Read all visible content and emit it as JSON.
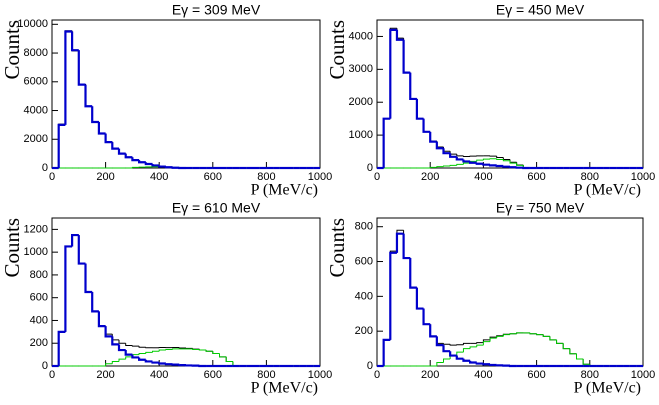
{
  "chart_data": [
    {
      "type": "histogram",
      "title": "Eγ = 309 MeV",
      "x_label": "P (MeV/c)",
      "y_label": "Counts",
      "bins": [
        0,
        25,
        50,
        75,
        100,
        125,
        150,
        175,
        200,
        225,
        250,
        275,
        300,
        325,
        350,
        375,
        400,
        425,
        450,
        475,
        500,
        525,
        550,
        575,
        600,
        625,
        650,
        675,
        700,
        725,
        750,
        775,
        800,
        825,
        850,
        875,
        900,
        925,
        950,
        975,
        1000
      ],
      "xlim": [
        0,
        1000
      ],
      "xticks": [
        0,
        200,
        400,
        600,
        800,
        1000
      ],
      "ylim": [
        0,
        10300
      ],
      "yticks": [
        0,
        2000,
        4000,
        6000,
        8000,
        10000
      ],
      "series": [
        {
          "color": "#000000",
          "line_width": 1,
          "values": [
            0,
            3050,
            9550,
            8150,
            5850,
            4280,
            3220,
            2380,
            1820,
            1340,
            1010,
            740,
            560,
            395,
            285,
            175,
            105,
            55,
            25,
            5,
            0,
            0,
            0,
            0,
            0,
            0,
            0,
            0,
            0,
            0,
            0,
            0,
            0,
            0,
            0,
            0,
            0,
            0,
            0,
            0
          ]
        },
        {
          "color": "#00cc00",
          "line_width": 1,
          "values": [
            0,
            0,
            0,
            0,
            0,
            0,
            0,
            0,
            0,
            0,
            0,
            0,
            40,
            60,
            80,
            90,
            80,
            60,
            40,
            20,
            0,
            0,
            0,
            0,
            0,
            0,
            0,
            0,
            0,
            0,
            0,
            0,
            0,
            0,
            0,
            0,
            0,
            0,
            0,
            0
          ]
        },
        {
          "color": "#0000cc",
          "line_width": 2.2,
          "values": [
            0,
            3000,
            9500,
            8200,
            5800,
            4300,
            3200,
            2400,
            1800,
            1350,
            1000,
            750,
            550,
            400,
            280,
            180,
            100,
            50,
            20,
            0,
            0,
            0,
            0,
            0,
            0,
            0,
            0,
            0,
            0,
            0,
            0,
            0,
            0,
            0,
            0,
            0,
            0,
            0,
            0,
            0
          ]
        }
      ]
    },
    {
      "type": "histogram",
      "title": "Eγ = 450 MeV",
      "x_label": "P (MeV/c)",
      "y_label": "Counts",
      "bins": [
        0,
        25,
        50,
        75,
        100,
        125,
        150,
        175,
        200,
        225,
        250,
        275,
        300,
        325,
        350,
        375,
        400,
        425,
        450,
        475,
        500,
        525,
        550,
        575,
        600,
        625,
        650,
        675,
        700,
        725,
        750,
        775,
        800,
        825,
        850,
        875,
        900,
        925,
        950,
        975,
        1000
      ],
      "xlim": [
        0,
        1000
      ],
      "xticks": [
        0,
        200,
        400,
        600,
        800,
        1000
      ],
      "ylim": [
        0,
        4500
      ],
      "yticks": [
        0,
        1000,
        2000,
        3000,
        4000
      ],
      "series": [
        {
          "color": "#000000",
          "line_width": 1,
          "values": [
            0,
            1500,
            4250,
            3950,
            2900,
            2100,
            1500,
            1100,
            820,
            640,
            510,
            420,
            370,
            350,
            360,
            370,
            370,
            360,
            320,
            260,
            175,
            90,
            0,
            0,
            0,
            0,
            0,
            0,
            0,
            0,
            0,
            0,
            0,
            0,
            0,
            0,
            0,
            0,
            0,
            0
          ]
        },
        {
          "color": "#00cc00",
          "line_width": 1,
          "values": [
            0,
            0,
            0,
            0,
            0,
            0,
            0,
            0,
            20,
            40,
            60,
            80,
            110,
            150,
            200,
            240,
            270,
            280,
            260,
            220,
            150,
            80,
            0,
            0,
            0,
            0,
            0,
            0,
            0,
            0,
            0,
            0,
            0,
            0,
            0,
            0,
            0,
            0,
            0,
            0
          ]
        },
        {
          "color": "#0000cc",
          "line_width": 2.2,
          "values": [
            0,
            1500,
            4200,
            3900,
            2900,
            2100,
            1500,
            1100,
            800,
            600,
            450,
            340,
            260,
            200,
            160,
            130,
            100,
            80,
            60,
            40,
            25,
            10,
            0,
            0,
            0,
            0,
            0,
            0,
            0,
            0,
            0,
            0,
            0,
            0,
            0,
            0,
            0,
            0,
            0,
            0
          ]
        }
      ]
    },
    {
      "type": "histogram",
      "title": "Eγ = 610 MeV",
      "x_label": "P (MeV/c)",
      "y_label": "Counts",
      "bins": [
        0,
        25,
        50,
        75,
        100,
        125,
        150,
        175,
        200,
        225,
        250,
        275,
        300,
        325,
        350,
        375,
        400,
        425,
        450,
        475,
        500,
        525,
        550,
        575,
        600,
        625,
        650,
        675,
        700,
        725,
        750,
        775,
        800,
        825,
        850,
        875,
        900,
        925,
        950,
        975,
        1000
      ],
      "xlim": [
        0,
        1000
      ],
      "xticks": [
        0,
        200,
        400,
        600,
        800,
        1000
      ],
      "ylim": [
        0,
        1300
      ],
      "yticks": [
        0,
        200,
        400,
        600,
        800,
        1000,
        1200
      ],
      "series": [
        {
          "color": "#000000",
          "line_width": 1,
          "values": [
            0,
            300,
            1050,
            1150,
            900,
            650,
            480,
            350,
            280,
            230,
            200,
            180,
            175,
            165,
            160,
            160,
            162,
            161,
            162,
            158,
            155,
            148,
            140,
            130,
            110,
            80,
            40,
            0,
            0,
            0,
            0,
            0,
            0,
            0,
            0,
            0,
            0,
            0,
            0,
            0
          ]
        },
        {
          "color": "#00cc00",
          "line_width": 1,
          "values": [
            0,
            0,
            0,
            0,
            0,
            0,
            0,
            0,
            20,
            40,
            60,
            80,
            100,
            110,
            120,
            130,
            140,
            145,
            150,
            150,
            150,
            145,
            140,
            130,
            110,
            80,
            40,
            0,
            0,
            0,
            0,
            0,
            0,
            0,
            0,
            0,
            0,
            0,
            0,
            0
          ]
        },
        {
          "color": "#0000cc",
          "line_width": 2.2,
          "values": [
            0,
            300,
            1050,
            1150,
            900,
            650,
            480,
            350,
            260,
            190,
            140,
            100,
            75,
            55,
            40,
            30,
            22,
            16,
            12,
            8,
            5,
            3,
            0,
            0,
            0,
            0,
            0,
            0,
            0,
            0,
            0,
            0,
            0,
            0,
            0,
            0,
            0,
            0,
            0,
            0
          ]
        }
      ]
    },
    {
      "type": "histogram",
      "title": "Eγ = 750 MeV",
      "x_label": "P (MeV/c)",
      "y_label": "Counts",
      "bins": [
        0,
        25,
        50,
        75,
        100,
        125,
        150,
        175,
        200,
        225,
        250,
        275,
        300,
        325,
        350,
        375,
        400,
        425,
        450,
        475,
        500,
        525,
        550,
        575,
        600,
        625,
        650,
        675,
        700,
        725,
        750,
        775,
        800,
        825,
        850,
        875,
        900,
        925,
        950,
        975,
        1000
      ],
      "xlim": [
        0,
        1000
      ],
      "xticks": [
        0,
        200,
        400,
        600,
        800,
        1000
      ],
      "ylim": [
        0,
        850
      ],
      "yticks": [
        0,
        200,
        400,
        600,
        800
      ],
      "series": [
        {
          "color": "#000000",
          "line_width": 1,
          "values": [
            0,
            150,
            660,
            780,
            620,
            450,
            330,
            240,
            170,
            130,
            125,
            120,
            122,
            130,
            130,
            134,
            150,
            166,
            174,
            182,
            185,
            190,
            190,
            185,
            180,
            170,
            150,
            130,
            100,
            70,
            40,
            10,
            0,
            0,
            0,
            0,
            0,
            0,
            0,
            0
          ]
        },
        {
          "color": "#00cc00",
          "line_width": 1,
          "values": [
            0,
            0,
            0,
            0,
            0,
            0,
            0,
            0,
            0,
            20,
            40,
            60,
            80,
            100,
            110,
            120,
            140,
            160,
            170,
            180,
            185,
            190,
            190,
            185,
            180,
            170,
            150,
            130,
            100,
            70,
            40,
            10,
            0,
            0,
            0,
            0,
            0,
            0,
            0,
            0
          ]
        },
        {
          "color": "#0000cc",
          "line_width": 2.2,
          "values": [
            0,
            150,
            650,
            760,
            620,
            450,
            330,
            240,
            170,
            120,
            85,
            60,
            42,
            30,
            20,
            14,
            10,
            6,
            4,
            2,
            0,
            0,
            0,
            0,
            0,
            0,
            0,
            0,
            0,
            0,
            0,
            0,
            0,
            0,
            0,
            0,
            0,
            0,
            0,
            0
          ]
        }
      ]
    }
  ]
}
